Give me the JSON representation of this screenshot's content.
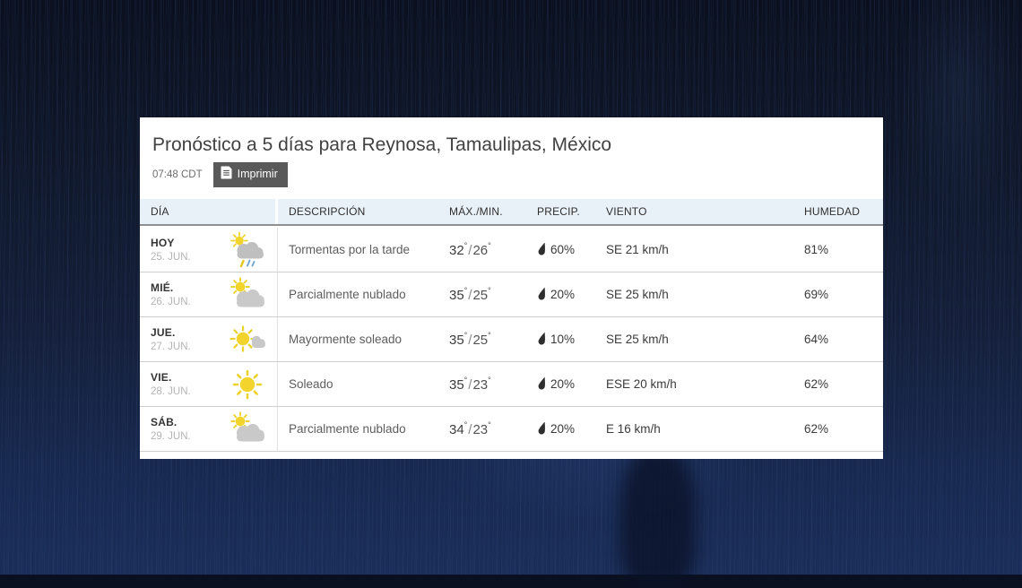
{
  "page": {
    "title": "Pronóstico a 5 días para Reynosa, Tamaulipas, México",
    "time": "07:48 CDT",
    "print_label": "Imprimir"
  },
  "symbols": {
    "degree": "°",
    "slash": "/"
  },
  "table": {
    "columns": [
      "DÍA",
      "DESCRIPCIÓN",
      "MÁX./MIN.",
      "PRECIP.",
      "VIENTO",
      "HUMEDAD"
    ],
    "rows": [
      {
        "day": "HOY",
        "date": "25. JUN.",
        "icon": "storm-day-icon",
        "desc": "Tormentas por la tarde",
        "max": "32",
        "min": "26",
        "precip": "60%",
        "wind": "SE 21 km/h",
        "humidity": "81%"
      },
      {
        "day": "MIÉ.",
        "date": "26. JUN.",
        "icon": "partly-sunny-icon",
        "desc": "Parcialmente nublado",
        "max": "35",
        "min": "25",
        "precip": "20%",
        "wind": "SE 25 km/h",
        "humidity": "69%"
      },
      {
        "day": "JUE.",
        "date": "27. JUN.",
        "icon": "mostly-sunny-icon",
        "desc": "Mayormente soleado",
        "max": "35",
        "min": "25",
        "precip": "10%",
        "wind": "SE 25 km/h",
        "humidity": "64%"
      },
      {
        "day": "VIE.",
        "date": "28. JUN.",
        "icon": "sunny-icon",
        "desc": "Soleado",
        "max": "35",
        "min": "23",
        "precip": "20%",
        "wind": "ESE 20 km/h",
        "humidity": "62%"
      },
      {
        "day": "SÁB.",
        "date": "29. JUN.",
        "icon": "partly-sunny-icon",
        "desc": "Parcialmente nublado",
        "max": "34",
        "min": "23",
        "precip": "20%",
        "wind": "E 16 km/h",
        "humidity": "62%"
      }
    ]
  },
  "colors": {
    "card_bg": "#ffffff",
    "table_header_bg": "#e9f1f8",
    "table_header_border": "#8f8f8f",
    "button_bg": "#595959",
    "night_sky": "#1b2e5a",
    "sun_yellow": "#f3d42c",
    "cloud_gray": "#c7c7c7",
    "rain_blue": "#74a9d6"
  }
}
